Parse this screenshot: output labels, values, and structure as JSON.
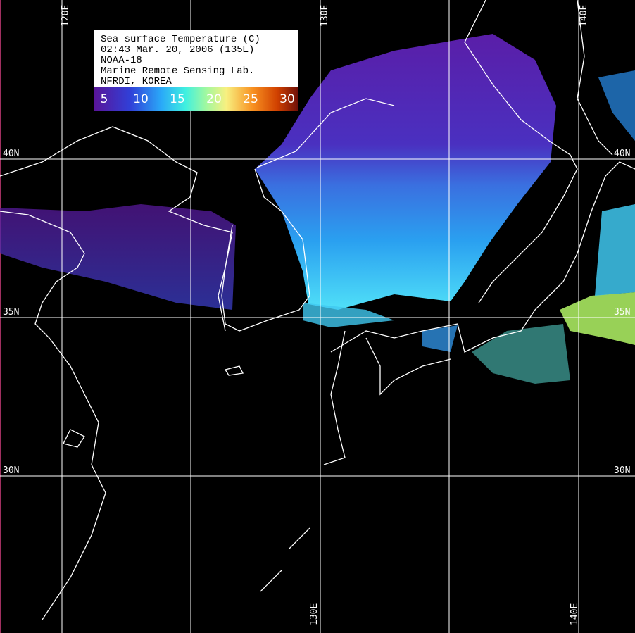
{
  "legend": {
    "lines": [
      "Sea surface Temperature (C)",
      "02:43 Mar. 20, 2006 (135E)",
      "NOAA-18",
      "Marine Remote Sensing Lab.",
      "NFRDI, KOREA"
    ],
    "scale": [
      5,
      10,
      15,
      20,
      25,
      30
    ]
  },
  "grid": {
    "lon_labels": [
      "120E",
      "130E",
      "140E"
    ],
    "lat_labels": [
      "40N",
      "35N",
      "30N"
    ]
  }
}
